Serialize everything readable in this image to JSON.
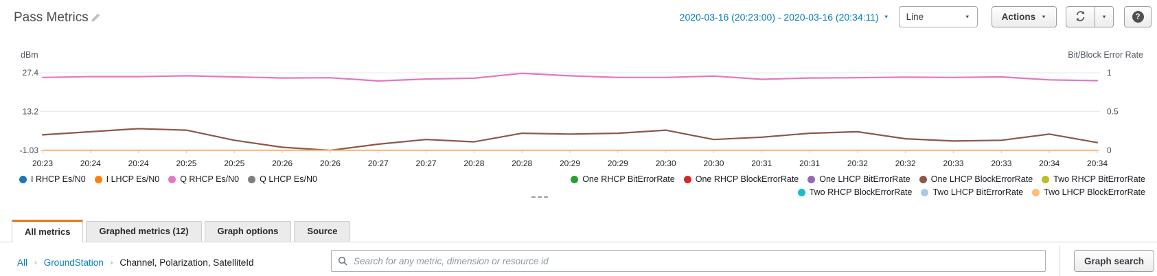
{
  "header": {
    "title": "Pass Metrics",
    "time_range_label": "2020-03-16 (20:23:00) - 2020-03-16 (20:34:11)",
    "chart_type_selected": "Line",
    "actions_label": "Actions"
  },
  "ui": {
    "caret_glyph": "▼",
    "help_glyph": "?"
  },
  "chart_data": {
    "type": "line",
    "title": "Pass Metrics",
    "left_axis": {
      "label": "dBm",
      "min": -1.03,
      "max": 27.4,
      "ticks": [
        27.4,
        13.2,
        -1.03
      ]
    },
    "right_axis": {
      "label": "Bit/Block Error Rate",
      "min": 0,
      "max": 1,
      "ticks": [
        1,
        0.5,
        0
      ]
    },
    "x_ticks": [
      "20:23",
      "20:24",
      "20:24",
      "20:25",
      "20:25",
      "20:26",
      "20:26",
      "20:27",
      "20:27",
      "20:28",
      "20:28",
      "20:29",
      "20:29",
      "20:30",
      "20:30",
      "20:31",
      "20:31",
      "20:32",
      "20:32",
      "20:33",
      "20:33",
      "20:34",
      "20:34"
    ],
    "series": [
      {
        "name": "Q RHCP Es/N0",
        "axis": "left",
        "color": "#e377c2",
        "values": [
          25.7,
          26.0,
          26.0,
          26.3,
          25.9,
          25.5,
          25.6,
          24.4,
          25.1,
          25.4,
          27.2,
          26.3,
          25.7,
          25.7,
          26.2,
          25.0,
          25.5,
          25.6,
          25.8,
          25.7,
          25.9,
          24.8,
          24.5
        ]
      },
      {
        "name": "One LHCP BlockErrorRate",
        "axis": "right",
        "color": "#8c564b",
        "values": [
          0.2,
          0.24,
          0.28,
          0.26,
          0.13,
          0.04,
          0.0,
          0.08,
          0.14,
          0.11,
          0.22,
          0.21,
          0.22,
          0.26,
          0.14,
          0.17,
          0.22,
          0.24,
          0.15,
          0.12,
          0.13,
          0.21,
          0.1
        ]
      },
      {
        "name": "Two LHCP BlockErrorRate",
        "axis": "right",
        "color": "#ffbb78",
        "values": [
          0,
          0,
          0,
          0,
          0,
          0,
          0,
          0,
          0,
          0,
          0,
          0,
          0,
          0,
          0,
          0,
          0,
          0,
          0,
          0,
          0,
          0,
          0
        ]
      }
    ],
    "legend": {
      "left": [
        {
          "label": "I RHCP Es/N0",
          "color": "#1f77b4"
        },
        {
          "label": "I LHCP Es/N0",
          "color": "#ff7f0e"
        },
        {
          "label": "Q RHCP Es/N0",
          "color": "#e377c2"
        },
        {
          "label": "Q LHCP Es/N0",
          "color": "#7f7f7f"
        }
      ],
      "right_rows": [
        [
          {
            "label": "One RHCP BitErrorRate",
            "color": "#2ca02c"
          },
          {
            "label": "One RHCP BlockErrorRate",
            "color": "#d62728"
          },
          {
            "label": "One LHCP BitErrorRate",
            "color": "#9467bd"
          },
          {
            "label": "One LHCP BlockErrorRate",
            "color": "#8c564b"
          },
          {
            "label": "Two RHCP BitErrorRate",
            "color": "#bcbd22"
          }
        ],
        [
          {
            "label": "Two RHCP BlockErrorRate",
            "color": "#17becf"
          },
          {
            "label": "Two LHCP BitErrorRate",
            "color": "#aec7e8"
          },
          {
            "label": "Two LHCP BlockErrorRate",
            "color": "#ffbb78"
          }
        ]
      ]
    }
  },
  "panel": {
    "tabs": [
      {
        "label": "All metrics",
        "active": true
      },
      {
        "label": "Graphed metrics (12)",
        "active": false
      },
      {
        "label": "Graph options",
        "active": false
      },
      {
        "label": "Source",
        "active": false
      }
    ],
    "breadcrumb": [
      {
        "label": "All",
        "link": true
      },
      {
        "label": "GroundStation",
        "link": true
      },
      {
        "label": "Channel, Polarization, SatelliteId",
        "link": false
      }
    ],
    "breadcrumb_separator": "›",
    "search_placeholder": "Search for any metric, dimension or resource id",
    "graph_search_label": "Graph search"
  },
  "colors": {
    "accent_orange": "#e87511",
    "link_blue": "#007dbc"
  }
}
